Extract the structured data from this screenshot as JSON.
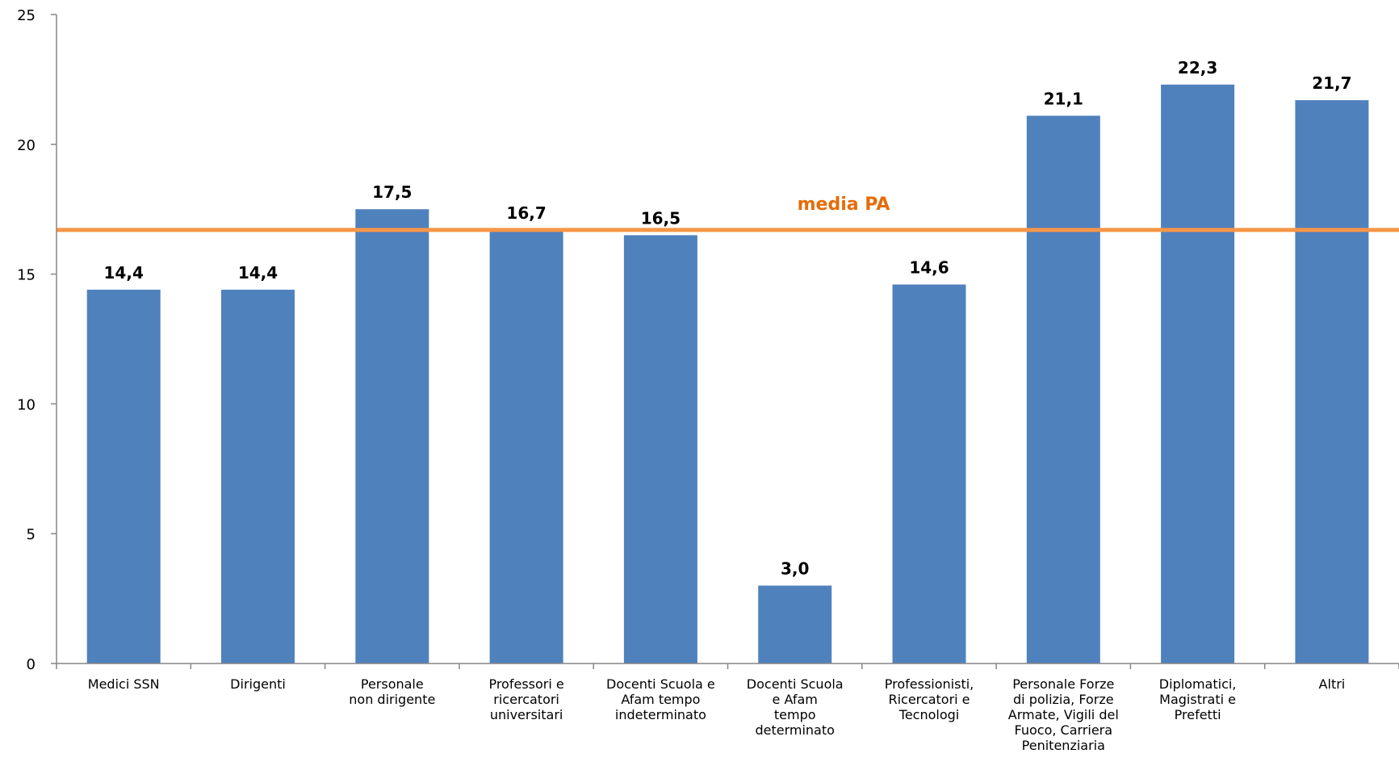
{
  "chart_data": {
    "type": "bar",
    "categories": [
      [
        "Medici SSN"
      ],
      [
        "Dirigenti"
      ],
      [
        "Personale",
        "non dirigente"
      ],
      [
        "Professori e",
        "ricercatori",
        "universitari"
      ],
      [
        "Docenti Scuola e",
        "Afam tempo",
        "indeterminato"
      ],
      [
        "Docenti Scuola",
        "e Afam",
        "tempo",
        "determinato"
      ],
      [
        "Professionisti,",
        "Ricercatori e",
        "Tecnologi"
      ],
      [
        "Personale Forze",
        "di polizia, Forze",
        "Armate, Vigili del",
        "Fuoco, Carriera",
        "Penitenziaria"
      ],
      [
        "Diplomatici,",
        "Magistrati e",
        "Prefetti"
      ],
      [
        "Altri"
      ]
    ],
    "values": [
      14.4,
      14.4,
      17.5,
      16.7,
      16.5,
      3.0,
      14.6,
      21.1,
      22.3,
      21.7
    ],
    "data_labels": [
      "14,4",
      "14,4",
      "17,5",
      "16,7",
      "16,5",
      "3,0",
      "14,6",
      "21,1",
      "22,3",
      "21,7"
    ],
    "ylim": [
      0,
      25
    ],
    "yticks": [
      0,
      5,
      10,
      15,
      20,
      25
    ],
    "grid": false,
    "title": "",
    "xlabel": "",
    "ylabel": "",
    "reference_line": {
      "label": "media PA",
      "value": 16.7
    },
    "colors": {
      "bar": "#4F81BD",
      "reference_line": "#F79646",
      "reference_label": "#E46C0A",
      "axis": "#868686"
    }
  }
}
